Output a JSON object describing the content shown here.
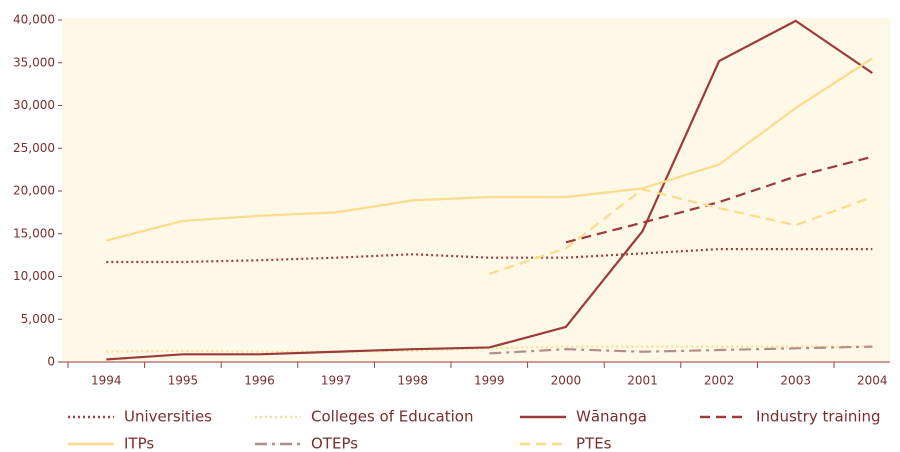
{
  "chart_data": {
    "type": "line",
    "categories": [
      "1994",
      "1995",
      "1996",
      "1997",
      "1998",
      "1999",
      "2000",
      "2001",
      "2002",
      "2003",
      "2004"
    ],
    "ylim": [
      0,
      40000
    ],
    "yticks": [
      0,
      {
        "value": 5000,
        "label": "5,000"
      },
      {
        "value": 10000,
        "label": "10,000"
      },
      {
        "value": 15000,
        "label": "15,000"
      },
      {
        "value": 20000,
        "label": "20,000"
      },
      {
        "value": 25000,
        "label": "25,000"
      },
      {
        "value": 30000,
        "label": "30,000"
      },
      {
        "value": 35000,
        "label": "35,000"
      },
      {
        "value": 40000,
        "label": "40,000"
      }
    ],
    "grid": false,
    "series": [
      {
        "name": "Universities",
        "color": "#9b3f3f",
        "dash": "dotted",
        "values": [
          11700,
          11700,
          11900,
          12200,
          12600,
          12200,
          12200,
          12700,
          13200,
          13200,
          13200
        ]
      },
      {
        "name": "Colleges of Education",
        "color": "#f7de92",
        "dash": "dotted",
        "values": [
          1200,
          1300,
          1200,
          1200,
          1300,
          1600,
          1800,
          1800,
          1800,
          1800,
          1800
        ]
      },
      {
        "name": "Wānanga",
        "color": "#9b3b3b",
        "dash": "solid",
        "values": [
          300,
          900,
          900,
          1200,
          1500,
          1700,
          4100,
          15300,
          35200,
          39900,
          33800
        ]
      },
      {
        "name": "Industry training",
        "color": "#9b3b3b",
        "dash": "dashed",
        "values": [
          null,
          null,
          null,
          null,
          null,
          null,
          14000,
          16300,
          18700,
          21700,
          24000
        ]
      },
      {
        "name": "ITPs",
        "color": "#f9dc8c",
        "dash": "solid",
        "values": [
          14200,
          16500,
          17100,
          17500,
          18900,
          19300,
          19300,
          20300,
          23100,
          29700,
          35500
        ]
      },
      {
        "name": "OTEPs",
        "color": "#b38c8c",
        "dash": "dashdot",
        "values": [
          null,
          null,
          null,
          null,
          null,
          1000,
          1500,
          1200,
          1400,
          1600,
          1800
        ]
      },
      {
        "name": "PTEs",
        "color": "#f9dc8c",
        "dash": "dashed",
        "values": [
          null,
          null,
          null,
          null,
          null,
          10300,
          13300,
          20200,
          18000,
          16000,
          19300
        ]
      }
    ]
  }
}
